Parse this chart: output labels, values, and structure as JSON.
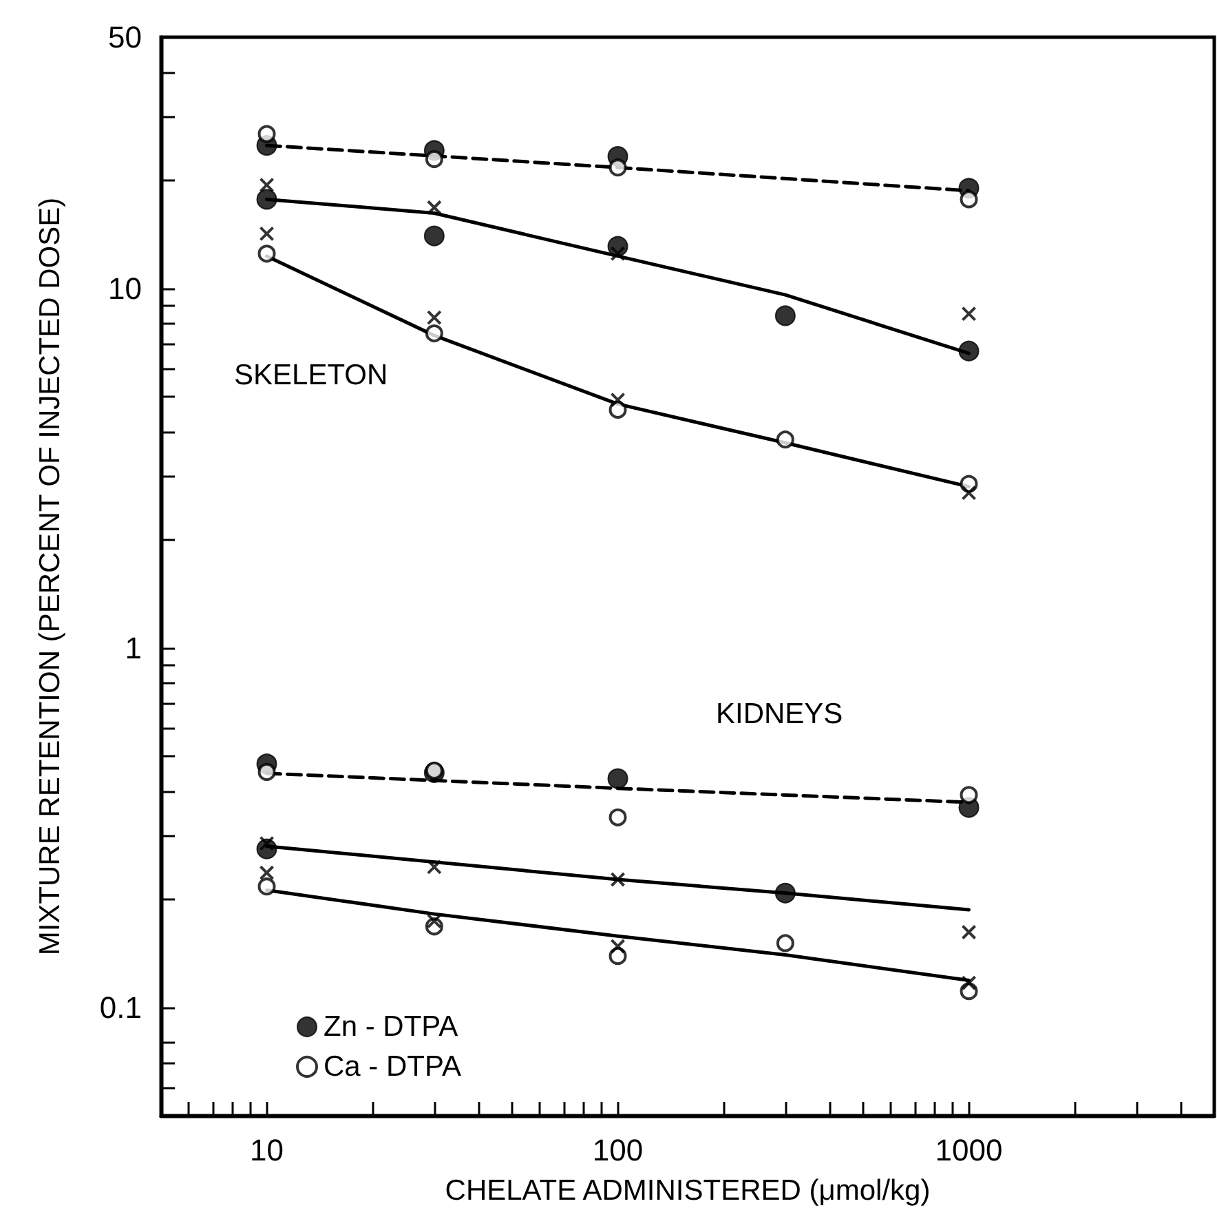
{
  "chart_data": {
    "type": "scatter",
    "xlabel": "CHELATE ADMINISTERED (μmol/kg)",
    "ylabel": "MIXTURE RETENTION (PERCENT OF INJECTED DOSE)",
    "log": "xy",
    "grid": false,
    "legend": "bottom left",
    "xlim": [
      5,
      5000
    ],
    "ylim": [
      0.05,
      50
    ],
    "xticks": [
      {
        "value": 5,
        "label": null
      },
      {
        "value": 6,
        "label": null
      },
      {
        "value": 7,
        "label": null
      },
      {
        "value": 8,
        "label": null
      },
      {
        "value": 9,
        "label": null
      },
      10,
      {
        "value": 20,
        "label": null
      },
      {
        "value": 30,
        "label": null
      },
      {
        "value": 40,
        "label": null
      },
      {
        "value": 50,
        "label": null
      },
      {
        "value": 60,
        "label": null
      },
      {
        "value": 70,
        "label": null
      },
      {
        "value": 80,
        "label": null
      },
      {
        "value": 90,
        "label": null
      },
      100,
      {
        "value": 200,
        "label": null
      },
      {
        "value": 300,
        "label": null
      },
      {
        "value": 400,
        "label": null
      },
      {
        "value": 500,
        "label": null
      },
      {
        "value": 600,
        "label": null
      },
      {
        "value": 700,
        "label": null
      },
      {
        "value": 800,
        "label": null
      },
      {
        "value": 900,
        "label": null
      },
      1000,
      {
        "value": 2000,
        "label": null
      },
      {
        "value": 3000,
        "label": null
      },
      {
        "value": 4000,
        "label": null
      }
    ],
    "yticks": [
      {
        "value": 0.06,
        "label": null
      },
      {
        "value": 0.07,
        "label": null
      },
      {
        "value": 0.08,
        "label": null
      },
      0.1,
      {
        "value": 0.2,
        "label": null
      },
      {
        "value": 0.3,
        "label": null
      },
      {
        "value": 0.4,
        "label": null
      },
      {
        "value": 0.5,
        "label": null
      },
      {
        "value": 0.6,
        "label": null
      },
      {
        "value": 0.7,
        "label": null
      },
      {
        "value": 0.8,
        "label": null
      },
      {
        "value": 0.9,
        "label": null
      },
      1,
      {
        "value": 2,
        "label": null
      },
      {
        "value": 3,
        "label": null
      },
      {
        "value": 4,
        "label": null
      },
      {
        "value": 5,
        "label": null
      },
      {
        "value": 6,
        "label": null
      },
      {
        "value": 7,
        "label": null
      },
      {
        "value": 8,
        "label": null
      },
      {
        "value": 9,
        "label": null
      },
      10,
      {
        "value": 20,
        "label": null
      },
      {
        "value": 30,
        "label": null
      },
      {
        "value": 40,
        "label": null
      },
      50
    ],
    "annotations": [
      "SKELETON",
      "KIDNEYS"
    ],
    "series": [
      {
        "name": "Zn - DTPA",
        "marker": "circle",
        "color": "#000000",
        "x": [
          10,
          10,
          30,
          30,
          100,
          100,
          300,
          1000,
          1000,
          10,
          30,
          100,
          300,
          1000,
          10
        ],
        "values": [
          25,
          17.7,
          24.2,
          14.0,
          23.3,
          13.1,
          8.4,
          19.0,
          6.7,
          0.476,
          0.45,
          0.433,
          0.208,
          0.36,
          0.276
        ]
      },
      {
        "name": "Ca - DTPA",
        "marker": "circle",
        "color": "#000000",
        "x": [
          10,
          10,
          30,
          30,
          100,
          100,
          300,
          1000,
          1000,
          10,
          30,
          100,
          1000,
          10,
          30,
          100,
          300,
          1000
        ],
        "values": [
          26.9,
          12.5,
          22.9,
          7.5,
          21.7,
          4.6,
          3.8,
          17.7,
          2.86,
          0.452,
          0.456,
          0.338,
          0.39,
          0.217,
          0.168,
          0.139,
          0.151,
          0.111
        ]
      },
      {
        "marker": "cross",
        "color": "#000000",
        "x": [
          10,
          10,
          30,
          30,
          100,
          100,
          1000,
          1000,
          10,
          10,
          30,
          30,
          100,
          100,
          1000,
          1000
        ],
        "values": [
          19.4,
          14.2,
          16.8,
          8.3,
          12.5,
          4.9,
          8.5,
          2.7,
          0.286,
          0.237,
          0.246,
          0.174,
          0.227,
          0.148,
          0.162,
          0.117
        ]
      },
      {
        "type": "line",
        "line_style": "dashed",
        "marker": "none",
        "color": "#000000",
        "x": [
          10,
          100,
          1000
        ],
        "values": [
          25,
          21.7,
          18.7
        ]
      },
      {
        "type": "line",
        "line_style": "solid",
        "marker": "none",
        "color": "#000000",
        "x": [
          10,
          30,
          100,
          300,
          1000
        ],
        "values": [
          17.7,
          16.2,
          12.3,
          9.6,
          6.6
        ]
      },
      {
        "type": "line",
        "line_style": "solid",
        "marker": "none",
        "color": "#000000",
        "x": [
          10,
          30,
          100,
          300,
          1000
        ],
        "values": [
          12.3,
          7.4,
          4.77,
          3.72,
          2.81
        ]
      },
      {
        "type": "line",
        "line_style": "dashed",
        "marker": "none",
        "color": "#000000",
        "x": [
          10,
          100,
          1000
        ],
        "values": [
          0.448,
          0.407,
          0.372
        ]
      },
      {
        "type": "line",
        "line_style": "solid",
        "marker": "none",
        "color": "#000000",
        "x": [
          10,
          100,
          300,
          1000
        ],
        "values": [
          0.281,
          0.227,
          0.208,
          0.187
        ]
      },
      {
        "type": "line",
        "line_style": "solid",
        "marker": "none",
        "color": "#000000",
        "x": [
          10,
          30,
          100,
          300,
          1000
        ],
        "values": [
          0.212,
          0.182,
          0.158,
          0.14,
          0.119
        ]
      }
    ]
  }
}
